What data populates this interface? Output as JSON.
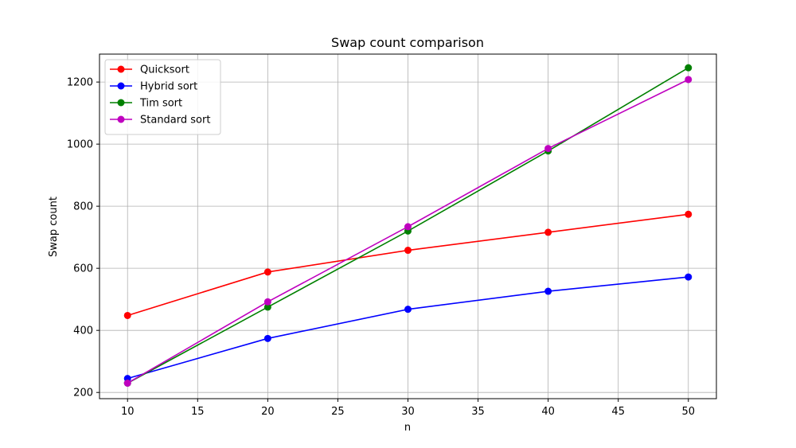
{
  "chart_data": {
    "type": "line",
    "title": "Swap count comparison",
    "xlabel": "n",
    "ylabel": "Swap count",
    "x": [
      10,
      20,
      30,
      40,
      50
    ],
    "xlim": [
      8,
      52
    ],
    "ylim": [
      180,
      1290
    ],
    "xticks": [
      10,
      15,
      20,
      25,
      30,
      35,
      40,
      45,
      50
    ],
    "yticks": [
      200,
      400,
      600,
      800,
      1000,
      1200
    ],
    "grid": true,
    "legend_position": "top-left",
    "series": [
      {
        "name": "Quicksort",
        "color": "#ff0000",
        "values": [
          448,
          588,
          658,
          716,
          774
        ]
      },
      {
        "name": "Hybrid sort",
        "color": "#0000ff",
        "values": [
          245,
          374,
          468,
          526,
          572
        ]
      },
      {
        "name": "Tim sort",
        "color": "#008000",
        "values": [
          230,
          475,
          720,
          978,
          1246
        ]
      },
      {
        "name": "Standard sort",
        "color": "#bf00bf",
        "values": [
          230,
          492,
          734,
          986,
          1208
        ]
      }
    ]
  }
}
